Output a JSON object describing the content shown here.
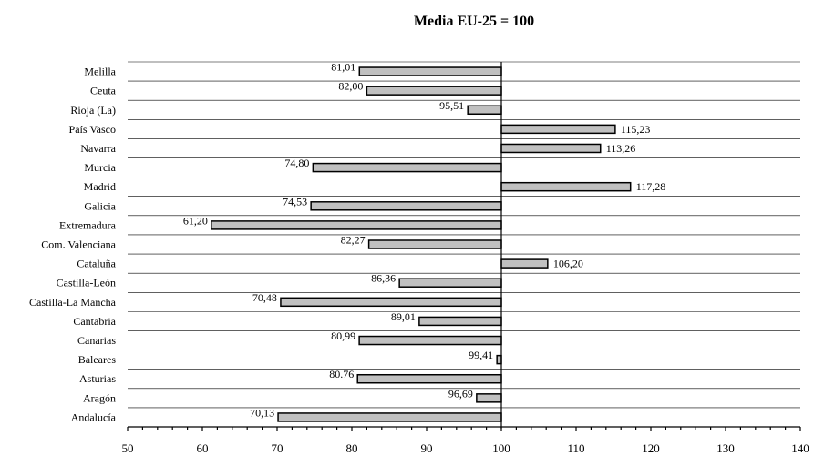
{
  "chart_data": {
    "type": "bar",
    "orientation": "horizontal",
    "title": "Media EU-25  = 100",
    "baseline": 100,
    "xlim": [
      50,
      140
    ],
    "xticks": [
      50,
      60,
      70,
      80,
      90,
      100,
      110,
      120,
      130,
      140
    ],
    "grid": true,
    "categories": [
      "Melilla",
      "Ceuta",
      "Rioja (La)",
      "País Vasco",
      "Navarra",
      "Murcia",
      "Madrid",
      "Galicia",
      "Extremadura",
      "Com. Valenciana",
      "Cataluña",
      "Castilla-León",
      "Castilla-La Mancha",
      "Cantabria",
      "Canarias",
      "Baleares",
      "Asturias",
      "Aragón",
      "Andalucía"
    ],
    "values": [
      81.01,
      82.0,
      95.51,
      115.23,
      113.26,
      74.8,
      117.28,
      74.53,
      61.2,
      82.27,
      106.2,
      86.36,
      70.48,
      89.01,
      80.99,
      99.41,
      80.76,
      96.69,
      70.13
    ],
    "value_labels": [
      "81,01",
      "82,00",
      "95,51",
      "115,23",
      "113,26",
      "74,80",
      "117,28",
      "74,53",
      "61,20",
      "82,27",
      "106,20",
      "86,36",
      "70,48",
      "89,01",
      "80,99",
      "99,41",
      "80.76",
      "96,69",
      "70,13"
    ],
    "colors": {
      "bar_fill": "#c0c0c0",
      "bar_stroke": "#000000"
    }
  }
}
